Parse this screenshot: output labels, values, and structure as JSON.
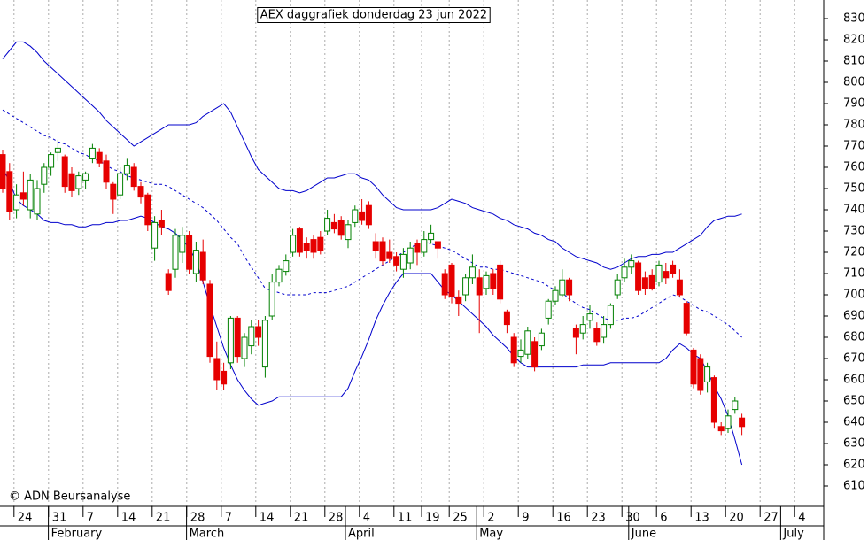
{
  "chart_data": {
    "type": "candlestick",
    "title": "AEX daggrafiek donderdag 23 jun 2022",
    "source": "© ADN Beursanalyse",
    "categories": [
      null,
      "24",
      null,
      null,
      null,
      null,
      "31",
      null,
      null,
      null,
      null,
      "7",
      null,
      null,
      null,
      null,
      "14",
      null,
      null,
      null,
      null,
      "21",
      null,
      null,
      null,
      null,
      "28",
      null,
      null,
      null,
      null,
      "7",
      null,
      null,
      null,
      null,
      "14",
      null,
      null,
      null,
      null,
      "21",
      null,
      null,
      null,
      null,
      "28",
      null,
      null,
      null,
      null,
      "4",
      null,
      null,
      null,
      null,
      "11",
      null,
      null,
      null,
      "19",
      null,
      null,
      null,
      "25",
      null,
      null,
      null,
      null,
      "2",
      null,
      null,
      null,
      null,
      "9",
      null,
      null,
      null,
      null,
      "16",
      null,
      null,
      null,
      null,
      "23",
      null,
      null,
      null,
      null,
      "30",
      null,
      null,
      null,
      null,
      "6",
      null,
      null,
      null,
      null,
      "13",
      null,
      null,
      null,
      null,
      "20",
      null,
      null,
      null,
      null,
      "27",
      null,
      null,
      null,
      null,
      "4",
      null,
      null,
      null,
      null
    ],
    "month_ticks": [
      {
        "value": 7,
        "label": "February"
      },
      {
        "value": 27,
        "label": "March"
      },
      {
        "value": 50,
        "label": "April"
      },
      {
        "value": 69,
        "label": "May"
      },
      {
        "value": 91,
        "label": "June"
      },
      {
        "value": 113,
        "label": "July"
      }
    ],
    "open": [
      766,
      758,
      740,
      748,
      740,
      738,
      752,
      760,
      767,
      765,
      757,
      750,
      754,
      764,
      767,
      763,
      752,
      747,
      757,
      760,
      751,
      747,
      722,
      735,
      710,
      712,
      720,
      728,
      710,
      720,
      705,
      670,
      664,
      668,
      689,
      670,
      676,
      685,
      666,
      690,
      706,
      711,
      720,
      731,
      724,
      726,
      727,
      730,
      734,
      735,
      726,
      734,
      739,
      742,
      725,
      725,
      720,
      718,
      712,
      715,
      724,
      720,
      726,
      725,
      710,
      714,
      699,
      700,
      708,
      708,
      703,
      710,
      714,
      692,
      680,
      671,
      672,
      678,
      676,
      689,
      697,
      700,
      707,
      684,
      682,
      688,
      684,
      680,
      686,
      700,
      708,
      713,
      715,
      708,
      709,
      706,
      711,
      714,
      707,
      696,
      674,
      670,
      659,
      661,
      638,
      637,
      646,
      642,
      null,
      null,
      null,
      null,
      null,
      null,
      null,
      null,
      null,
      null,
      null
    ],
    "high": [
      768,
      762,
      752,
      758,
      757,
      754,
      762,
      767,
      773,
      766,
      760,
      758,
      758,
      771,
      769,
      766,
      753,
      760,
      764,
      762,
      753,
      748,
      737,
      740,
      712,
      731,
      732,
      730,
      725,
      726,
      707,
      678,
      668,
      690,
      690,
      682,
      688,
      688,
      690,
      710,
      714,
      719,
      731,
      732,
      727,
      728,
      730,
      740,
      738,
      737,
      735,
      742,
      745,
      744,
      729,
      727,
      726,
      720,
      722,
      725,
      726,
      730,
      733,
      725,
      712,
      715,
      702,
      710,
      719,
      712,
      711,
      712,
      716,
      693,
      682,
      679,
      685,
      680,
      684,
      698,
      704,
      712,
      708,
      686,
      690,
      695,
      687,
      690,
      696,
      710,
      717,
      719,
      716,
      711,
      712,
      716,
      715,
      716,
      712,
      697,
      675,
      672,
      668,
      662,
      640,
      646,
      652,
      644,
      null,
      null,
      null,
      null,
      null,
      null,
      null,
      null,
      null,
      null,
      null
    ],
    "low": [
      748,
      735,
      736,
      742,
      736,
      735,
      748,
      756,
      763,
      748,
      746,
      747,
      750,
      762,
      760,
      750,
      738,
      745,
      754,
      749,
      743,
      730,
      716,
      728,
      700,
      708,
      715,
      710,
      706,
      705,
      668,
      655,
      655,
      665,
      668,
      666,
      672,
      676,
      661,
      688,
      704,
      709,
      718,
      718,
      717,
      717,
      719,
      728,
      729,
      726,
      722,
      732,
      733,
      731,
      717,
      714,
      715,
      711,
      708,
      712,
      714,
      718,
      724,
      717,
      698,
      696,
      690,
      697,
      705,
      682,
      700,
      700,
      696,
      682,
      666,
      668,
      670,
      664,
      674,
      686,
      695,
      699,
      697,
      672,
      679,
      684,
      676,
      677,
      684,
      698,
      706,
      710,
      700,
      700,
      702,
      704,
      705,
      708,
      699,
      681,
      656,
      653,
      654,
      637,
      634,
      635,
      644,
      634,
      null,
      null,
      null,
      null,
      null,
      null,
      null,
      null,
      null,
      null,
      null
    ],
    "close": [
      750,
      739,
      747,
      745,
      754,
      750,
      760,
      766,
      769,
      751,
      749,
      756,
      757,
      769,
      762,
      753,
      745,
      757,
      761,
      751,
      746,
      733,
      734,
      732,
      702,
      728,
      728,
      712,
      721,
      707,
      671,
      660,
      658,
      689,
      671,
      680,
      685,
      680,
      688,
      706,
      712,
      716,
      728,
      720,
      721,
      720,
      721,
      736,
      731,
      728,
      733,
      740,
      735,
      733,
      721,
      716,
      717,
      714,
      719,
      722,
      720,
      726,
      729,
      722,
      700,
      699,
      696,
      708,
      713,
      700,
      709,
      703,
      698,
      686,
      668,
      674,
      683,
      666,
      682,
      697,
      702,
      707,
      700,
      680,
      686,
      691,
      678,
      686,
      695,
      707,
      713,
      716,
      702,
      703,
      703,
      714,
      708,
      710,
      700,
      682,
      658,
      655,
      666,
      640,
      636,
      643,
      650,
      638,
      null,
      null,
      null,
      null,
      null,
      null,
      null,
      null,
      null,
      null,
      null
    ],
    "color_up": "#008000",
    "color_down": "#e60000",
    "bands": {
      "color": "#0000cc",
      "upper": [
        811,
        815,
        819,
        819,
        817,
        814,
        810,
        807,
        804,
        801,
        798,
        795,
        792,
        789,
        786,
        782,
        779,
        776,
        773,
        770,
        772,
        774,
        776,
        778,
        780,
        780,
        780,
        780,
        781,
        784,
        786,
        788,
        790,
        786,
        779,
        772,
        765,
        759,
        756,
        753,
        750,
        749,
        749,
        748,
        749,
        751,
        753,
        755,
        755,
        756,
        757,
        757,
        755,
        754,
        751,
        747,
        744,
        741,
        740,
        740,
        740,
        740,
        740,
        741,
        743,
        745,
        744,
        743,
        741,
        740,
        739,
        738,
        736,
        735,
        733,
        732,
        731,
        729,
        728,
        726,
        725,
        722,
        720,
        718,
        717,
        716,
        715,
        713,
        712,
        713,
        715,
        717,
        718,
        718,
        719,
        719,
        720,
        720,
        722,
        724,
        726,
        728,
        732,
        735,
        736,
        737,
        737,
        738,
        null,
        null,
        null,
        null,
        null,
        null,
        null,
        null,
        null,
        null,
        null
      ],
      "middle": [
        787,
        785,
        783,
        781,
        779,
        777,
        775,
        774,
        772,
        771,
        769,
        767,
        766,
        764,
        763,
        761,
        759,
        758,
        756,
        755,
        754,
        753,
        752,
        752,
        751,
        749,
        747,
        745,
        743,
        741,
        738,
        735,
        731,
        727,
        724,
        718,
        713,
        708,
        703,
        702,
        701,
        700,
        700,
        700,
        700,
        701,
        701,
        701,
        702,
        703,
        704,
        706,
        708,
        710,
        712,
        714,
        716,
        718,
        720,
        722,
        724,
        725,
        724,
        723,
        722,
        721,
        719,
        717,
        715,
        713,
        713,
        712,
        712,
        711,
        710,
        709,
        708,
        707,
        706,
        704,
        702,
        701,
        698,
        696,
        694,
        693,
        691,
        689,
        688,
        688,
        689,
        689,
        690,
        692,
        694,
        696,
        698,
        700,
        699,
        697,
        695,
        693,
        692,
        690,
        688,
        686,
        683,
        680,
        null,
        null,
        null,
        null,
        null,
        null,
        null,
        null,
        null,
        null,
        null
      ],
      "lower": [
        760,
        753,
        745,
        742,
        740,
        738,
        735,
        734,
        734,
        733,
        733,
        732,
        732,
        733,
        733,
        734,
        734,
        735,
        735,
        736,
        737,
        736,
        734,
        732,
        731,
        729,
        726,
        722,
        716,
        706,
        695,
        685,
        675,
        667,
        660,
        655,
        651,
        648,
        649,
        650,
        652,
        652,
        652,
        652,
        652,
        652,
        652,
        652,
        652,
        652,
        656,
        664,
        671,
        679,
        688,
        695,
        701,
        706,
        710,
        710,
        710,
        710,
        710,
        706,
        702,
        700,
        697,
        694,
        691,
        688,
        685,
        681,
        678,
        675,
        671,
        668,
        666,
        666,
        666,
        666,
        666,
        666,
        666,
        666,
        667,
        667,
        667,
        667,
        668,
        668,
        668,
        668,
        668,
        668,
        668,
        668,
        670,
        674,
        677,
        675,
        672,
        670,
        664,
        657,
        651,
        643,
        632,
        620,
        null,
        null,
        null,
        null,
        null,
        null,
        null,
        null,
        null,
        null,
        null
      ]
    },
    "ylim": [
      601.25,
      838.75
    ],
    "yticks": [
      610,
      620,
      630,
      640,
      650,
      660,
      670,
      680,
      690,
      700,
      710,
      720,
      730,
      740,
      750,
      760,
      770,
      780,
      790,
      800,
      810,
      820,
      830
    ],
    "grid": true
  }
}
